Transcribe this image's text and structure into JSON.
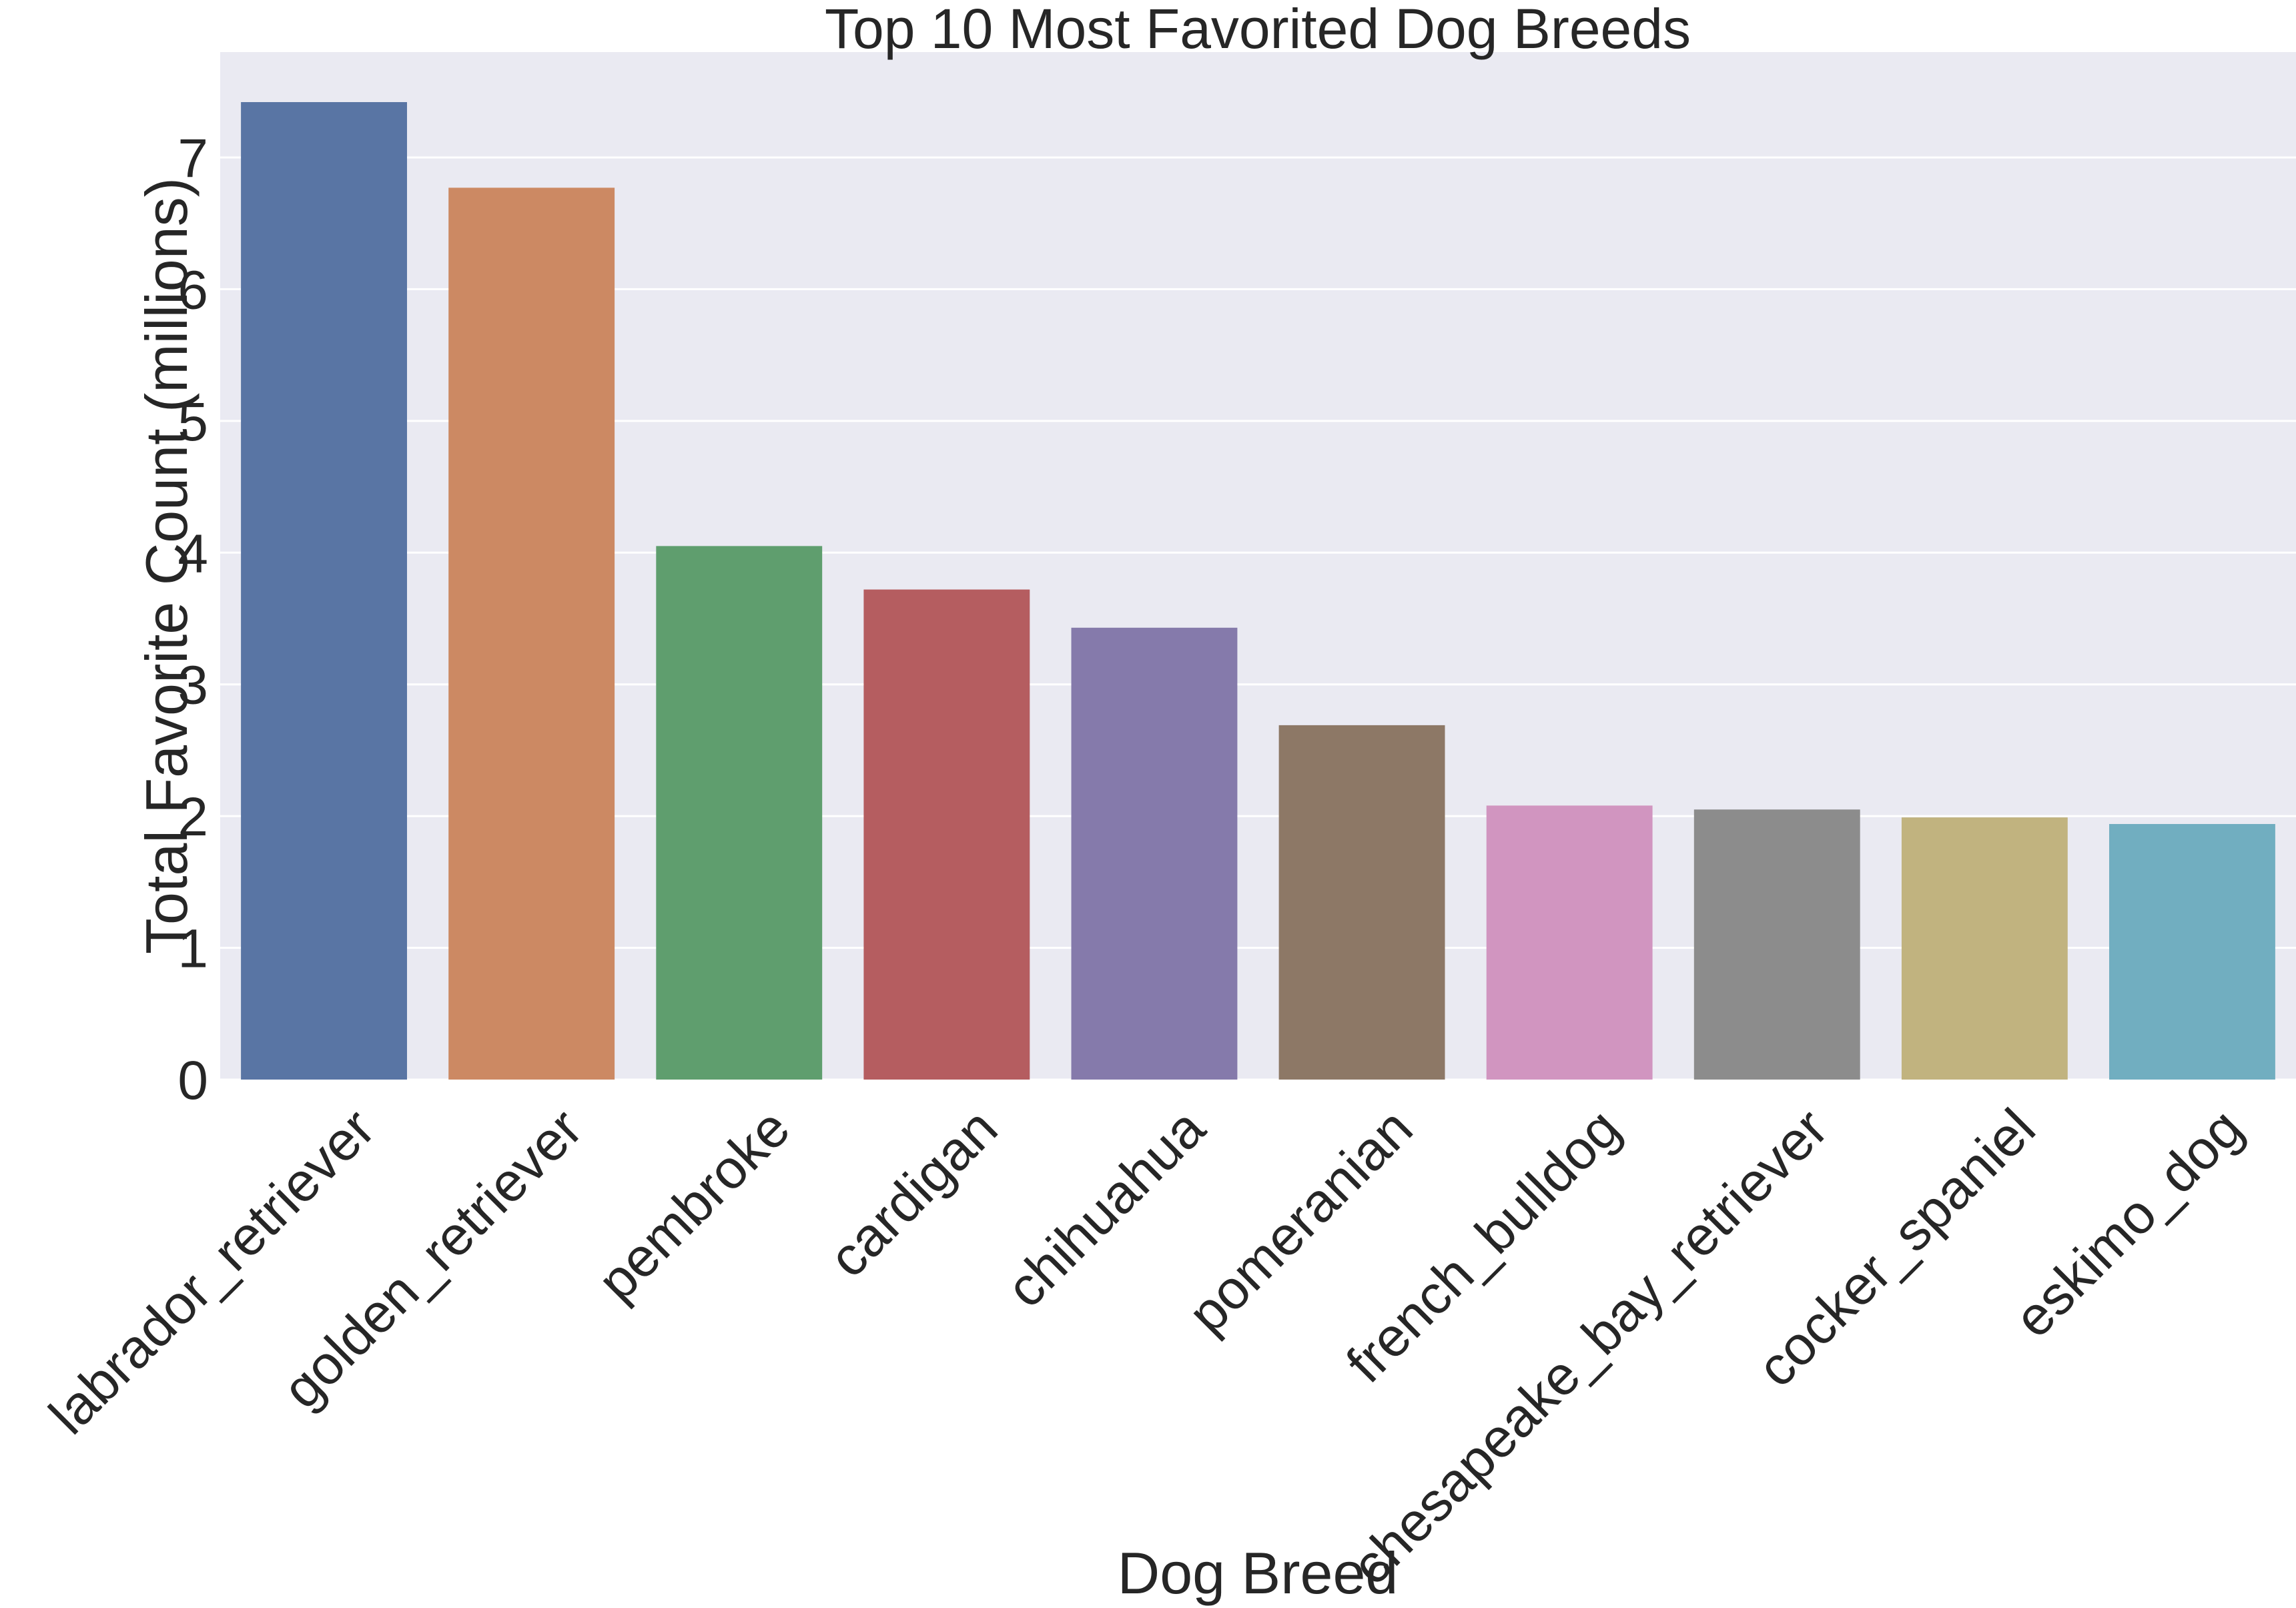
{
  "chart_data": {
    "type": "bar",
    "title": "Top 10 Most Favorited Dog Breeds",
    "xlabel": "Dog Breed",
    "ylabel": "Total Favorite Count (millions)",
    "categories": [
      "labrador_retriever",
      "golden_retriever",
      "pembroke",
      "cardigan",
      "chihuahua",
      "pomeranian",
      "french_bulldog",
      "chesapeake_bay_retriever",
      "cocker_spaniel",
      "eskimo_dog"
    ],
    "values": [
      7.42,
      6.77,
      4.05,
      3.72,
      3.43,
      2.69,
      2.08,
      2.05,
      1.99,
      1.94
    ],
    "colors": [
      "#5975a4",
      "#cc8963",
      "#5f9e6e",
      "#b55d60",
      "#857aab",
      "#8d7866",
      "#d195c0",
      "#8c8c8c",
      "#c1b37f",
      "#71aec0"
    ],
    "yticks": [
      0,
      1,
      2,
      3,
      4,
      5,
      6,
      7
    ],
    "ylim": [
      0,
      7.8
    ],
    "grid": true,
    "background": "#eaeaf2"
  }
}
